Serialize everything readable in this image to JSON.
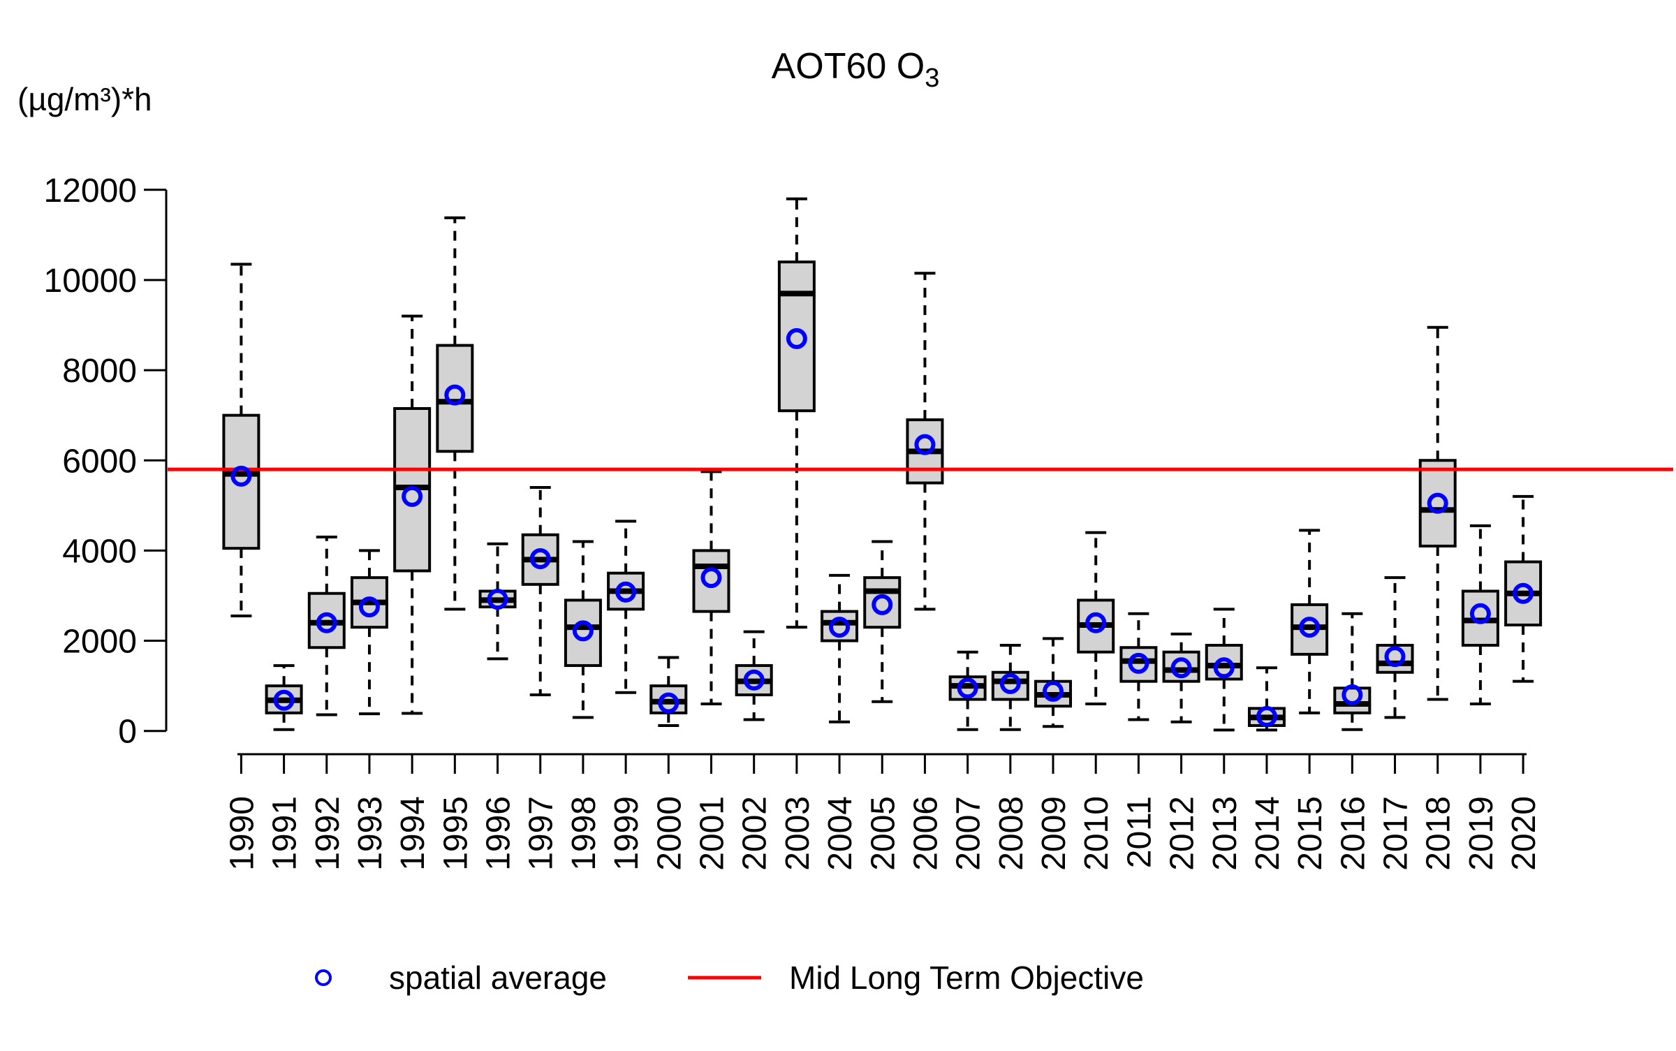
{
  "title": {
    "main": "AOT60 O",
    "subscript": "3"
  },
  "y_axis": {
    "unit_label": "(µg/m³)*h",
    "ticks": [
      0,
      2000,
      4000,
      6000,
      8000,
      10000,
      12000
    ],
    "range": [
      0,
      12000
    ]
  },
  "x_axis": {
    "years": [
      "1990",
      "1991",
      "1992",
      "1993",
      "1994",
      "1995",
      "1996",
      "1997",
      "1998",
      "1999",
      "2000",
      "2001",
      "2002",
      "2003",
      "2004",
      "2005",
      "2006",
      "2007",
      "2008",
      "2009",
      "2010",
      "2011",
      "2012",
      "2013",
      "2014",
      "2015",
      "2016",
      "2017",
      "2018",
      "2019",
      "2020"
    ]
  },
  "legend": {
    "items": [
      {
        "label": "spatial average",
        "symbol": "circle",
        "color": "#0000FF"
      },
      {
        "label": "Mid Long Term Objective",
        "symbol": "line",
        "color": "#FF0000"
      }
    ]
  },
  "colors": {
    "box_fill": "#D3D3D3",
    "box_stroke": "#000000",
    "average_point": "#0000FF",
    "reference_line": "#FF0000"
  },
  "chart_data": {
    "type": "boxplot",
    "title": "AOT60 O3",
    "ylabel": "(µg/m³)*h",
    "ylim": [
      0,
      12000
    ],
    "y_ticks": [
      0,
      2000,
      4000,
      6000,
      8000,
      10000,
      12000
    ],
    "grid": false,
    "legend_position": "bottom",
    "reference_line": {
      "label": "Mid Long Term Objective",
      "value": 5800
    },
    "categories": [
      "1990",
      "1991",
      "1992",
      "1993",
      "1994",
      "1995",
      "1996",
      "1997",
      "1998",
      "1999",
      "2000",
      "2001",
      "2002",
      "2003",
      "2004",
      "2005",
      "2006",
      "2007",
      "2008",
      "2009",
      "2010",
      "2011",
      "2012",
      "2013",
      "2014",
      "2015",
      "2016",
      "2017",
      "2018",
      "2019",
      "2020"
    ],
    "boxes": [
      {
        "year": "1990",
        "low": 2550,
        "q1": 4050,
        "median": 5700,
        "q3": 7000,
        "high": 10350,
        "avg": 5650
      },
      {
        "year": "1991",
        "low": 30,
        "q1": 400,
        "median": 680,
        "q3": 1000,
        "high": 1450,
        "avg": 680
      },
      {
        "year": "1992",
        "low": 360,
        "q1": 1850,
        "median": 2400,
        "q3": 3050,
        "high": 4300,
        "avg": 2400
      },
      {
        "year": "1993",
        "low": 380,
        "q1": 2300,
        "median": 2850,
        "q3": 3400,
        "high": 4000,
        "avg": 2750
      },
      {
        "year": "1994",
        "low": 390,
        "q1": 3550,
        "median": 5400,
        "q3": 7150,
        "high": 9200,
        "avg": 5200
      },
      {
        "year": "1995",
        "low": 2700,
        "q1": 6200,
        "median": 7300,
        "q3": 8550,
        "high": 11380,
        "avg": 7450
      },
      {
        "year": "1996",
        "low": 1600,
        "q1": 2750,
        "median": 2900,
        "q3": 3100,
        "high": 4150,
        "avg": 2920
      },
      {
        "year": "1997",
        "low": 800,
        "q1": 3250,
        "median": 3800,
        "q3": 4350,
        "high": 5400,
        "avg": 3820
      },
      {
        "year": "1998",
        "low": 300,
        "q1": 1450,
        "median": 2300,
        "q3": 2900,
        "high": 4200,
        "avg": 2220
      },
      {
        "year": "1999",
        "low": 850,
        "q1": 2700,
        "median": 3100,
        "q3": 3500,
        "high": 4650,
        "avg": 3080
      },
      {
        "year": "2000",
        "low": 120,
        "q1": 400,
        "median": 650,
        "q3": 1000,
        "high": 1630,
        "avg": 620
      },
      {
        "year": "2001",
        "low": 600,
        "q1": 2650,
        "median": 3650,
        "q3": 4000,
        "high": 5750,
        "avg": 3400
      },
      {
        "year": "2002",
        "low": 250,
        "q1": 800,
        "median": 1100,
        "q3": 1450,
        "high": 2200,
        "avg": 1130
      },
      {
        "year": "2003",
        "low": 2300,
        "q1": 7100,
        "median": 9700,
        "q3": 10400,
        "high": 11800,
        "avg": 8700
      },
      {
        "year": "2004",
        "low": 200,
        "q1": 2000,
        "median": 2400,
        "q3": 2650,
        "high": 3450,
        "avg": 2300
      },
      {
        "year": "2005",
        "low": 650,
        "q1": 2300,
        "median": 3100,
        "q3": 3400,
        "high": 4200,
        "avg": 2800
      },
      {
        "year": "2006",
        "low": 2700,
        "q1": 5500,
        "median": 6200,
        "q3": 6900,
        "high": 10150,
        "avg": 6350
      },
      {
        "year": "2007",
        "low": 30,
        "q1": 700,
        "median": 1000,
        "q3": 1200,
        "high": 1750,
        "avg": 950
      },
      {
        "year": "2008",
        "low": 30,
        "q1": 700,
        "median": 1100,
        "q3": 1300,
        "high": 1900,
        "avg": 1050
      },
      {
        "year": "2009",
        "low": 100,
        "q1": 550,
        "median": 800,
        "q3": 1100,
        "high": 2050,
        "avg": 880
      },
      {
        "year": "2010",
        "low": 600,
        "q1": 1750,
        "median": 2350,
        "q3": 2900,
        "high": 4400,
        "avg": 2400
      },
      {
        "year": "2011",
        "low": 250,
        "q1": 1100,
        "median": 1550,
        "q3": 1850,
        "high": 2600,
        "avg": 1500
      },
      {
        "year": "2012",
        "low": 200,
        "q1": 1100,
        "median": 1350,
        "q3": 1750,
        "high": 2150,
        "avg": 1400
      },
      {
        "year": "2013",
        "low": 20,
        "q1": 1150,
        "median": 1450,
        "q3": 1900,
        "high": 2700,
        "avg": 1400
      },
      {
        "year": "2014",
        "low": 20,
        "q1": 120,
        "median": 300,
        "q3": 500,
        "high": 1400,
        "avg": 320
      },
      {
        "year": "2015",
        "low": 400,
        "q1": 1700,
        "median": 2300,
        "q3": 2800,
        "high": 4450,
        "avg": 2300
      },
      {
        "year": "2016",
        "low": 30,
        "q1": 400,
        "median": 600,
        "q3": 950,
        "high": 2600,
        "avg": 800
      },
      {
        "year": "2017",
        "low": 300,
        "q1": 1300,
        "median": 1500,
        "q3": 1900,
        "high": 3400,
        "avg": 1650
      },
      {
        "year": "2018",
        "low": 700,
        "q1": 4100,
        "median": 4900,
        "q3": 6000,
        "high": 8950,
        "avg": 5050
      },
      {
        "year": "2019",
        "low": 600,
        "q1": 1900,
        "median": 2450,
        "q3": 3100,
        "high": 4550,
        "avg": 2600
      },
      {
        "year": "2020",
        "low": 1100,
        "q1": 2350,
        "median": 3050,
        "q3": 3750,
        "high": 5200,
        "avg": 3050
      }
    ]
  }
}
